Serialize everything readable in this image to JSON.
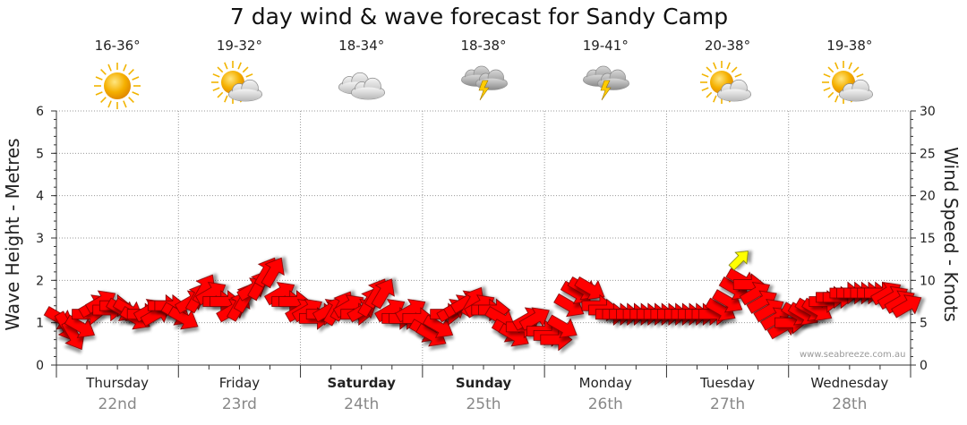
{
  "chart_data": {
    "type": "scatter",
    "title": "7 day wind & wave forecast for Sandy Camp",
    "ylabel_left": "Wave Height - Metres",
    "ylabel_right": "Wind Speed - Knots",
    "y_left_lim": [
      0,
      6
    ],
    "y_right_lim": [
      0,
      30
    ],
    "y_left_ticks": [
      "0",
      "1",
      "2",
      "3",
      "4",
      "5",
      "6"
    ],
    "y_right_ticks": [
      "0",
      "5",
      "10",
      "15",
      "20",
      "25",
      "30"
    ],
    "grid": true,
    "days": [
      {
        "name": "Thursday",
        "date": "22nd",
        "temp": "16-36°",
        "icon": "sunny-icon",
        "bold": false
      },
      {
        "name": "Friday",
        "date": "23rd",
        "temp": "19-32°",
        "icon": "partly-cloudy-icon",
        "bold": false
      },
      {
        "name": "Saturday",
        "date": "24th",
        "temp": "18-34°",
        "icon": "cloudy-icon",
        "bold": true
      },
      {
        "name": "Sunday",
        "date": "25th",
        "temp": "18-38°",
        "icon": "storm-icon",
        "bold": true
      },
      {
        "name": "Monday",
        "date": "26th",
        "temp": "19-41°",
        "icon": "storm-icon",
        "bold": false
      },
      {
        "name": "Tuesday",
        "date": "27th",
        "temp": "20-38°",
        "icon": "partly-cloudy-icon",
        "bold": false
      },
      {
        "name": "Wednesday",
        "date": "28th",
        "temp": "19-38°",
        "icon": "partly-cloudy-icon",
        "bold": false
      }
    ],
    "wind_series": {
      "name": "",
      "knots": [
        5.5,
        4.5,
        3.5,
        4.5,
        6,
        7,
        7.5,
        6.5,
        7,
        6.5,
        6.5,
        5.5,
        6,
        6.5,
        6,
        7,
        7,
        6,
        5.5,
        7.5,
        8,
        9,
        8.5,
        7.5,
        7.5,
        6.5,
        7,
        8,
        9,
        9.5,
        11,
        11,
        8.5,
        7.5,
        7.5,
        6.5,
        6.5,
        5.5,
        6,
        6.5,
        6.5,
        7,
        7,
        6,
        6.5,
        7.5,
        8.5,
        8.5,
        6.5,
        5.5,
        5.5,
        6.5,
        5.5,
        4,
        3.5,
        4.5,
        6,
        6.5,
        7,
        7.5,
        7.5,
        7,
        6.5,
        6.5,
        5.5,
        4,
        3.5,
        4.5,
        5.5,
        5.5,
        4,
        3.5,
        3,
        4.5,
        7,
        8.5,
        9,
        9,
        7,
        6.5,
        6,
        6,
        6,
        6,
        6,
        6,
        6,
        6,
        6,
        6,
        6,
        6,
        6,
        6,
        6,
        6,
        6.5,
        7.5,
        9,
        10,
        9.5,
        8.5,
        7.5,
        6.5,
        5.5,
        4.5,
        5,
        6,
        6,
        6.5,
        6.5,
        7.5,
        8,
        8,
        8.5,
        8.5,
        8.5,
        8.5,
        8.5,
        8.5,
        8.5,
        8,
        7.5,
        7
      ],
      "directions_deg": [
        60,
        30,
        30,
        60,
        90,
        120,
        120,
        90,
        90,
        60,
        60,
        60,
        90,
        120,
        120,
        90,
        90,
        60,
        60,
        120,
        150,
        150,
        120,
        90,
        90,
        120,
        150,
        150,
        120,
        150,
        150,
        150,
        120,
        90,
        90,
        120,
        120,
        90,
        90,
        120,
        150,
        150,
        120,
        90,
        120,
        150,
        150,
        150,
        120,
        90,
        90,
        120,
        90,
        60,
        60,
        60,
        90,
        120,
        120,
        120,
        150,
        120,
        90,
        90,
        60,
        60,
        60,
        90,
        120,
        120,
        90,
        90,
        90,
        60,
        60,
        60,
        60,
        60,
        90,
        90,
        90,
        90,
        90,
        90,
        90,
        90,
        90,
        90,
        90,
        90,
        90,
        90,
        90,
        90,
        90,
        90,
        60,
        60,
        60,
        60,
        90,
        120,
        120,
        120,
        120,
        120,
        90,
        60,
        60,
        60,
        60,
        90,
        90,
        90,
        90,
        90,
        90,
        90,
        90,
        90,
        120,
        120,
        120,
        120
      ],
      "color": "#ff0000"
    },
    "swell_marker": {
      "day_index": 5,
      "knots": 11,
      "direction_deg": 135,
      "color": "#ffff00"
    }
  },
  "watermark": "www.seabreeze.com.au"
}
